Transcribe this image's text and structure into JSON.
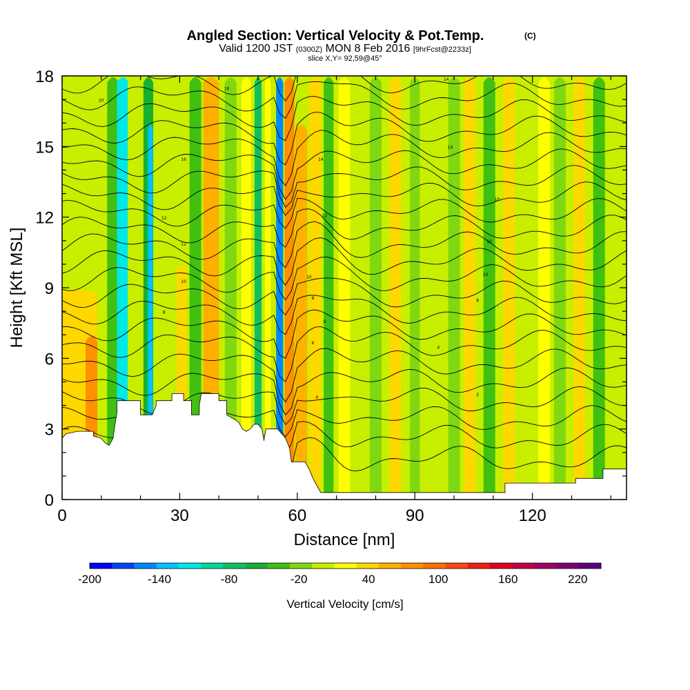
{
  "chart_data": {
    "type": "heatmap",
    "title": "Angled Section: Vertical Velocity & Pot.Temp.",
    "title_unit": "(C)",
    "subtitle_parts": {
      "valid": "Valid 1200 JST",
      "utc": "(0300Z)",
      "date": "MON 8 Feb 2016",
      "forecast": "[9hrFcst@2233z]"
    },
    "slice_text": "slice X,Y= 92,59@45°",
    "xlabel": "Distance [nm]",
    "ylabel": "Height [Kft MSL]",
    "xlim": [
      0,
      144
    ],
    "ylim": [
      0,
      18
    ],
    "x_ticks": [
      0,
      30,
      60,
      90,
      120
    ],
    "y_ticks": [
      0,
      3,
      6,
      9,
      12,
      15,
      18
    ],
    "colorbar": {
      "label": "Vertical Velocity [cm/s]",
      "range": [
        -200,
        240
      ],
      "tick_values": [
        -200,
        -140,
        -80,
        -20,
        40,
        100,
        160,
        220
      ],
      "colors": [
        "#0000ff",
        "#0044ff",
        "#0088ff",
        "#00c4ff",
        "#00e8e8",
        "#00d8a0",
        "#10c060",
        "#18b030",
        "#40c010",
        "#80d810",
        "#c8ee00",
        "#ffff00",
        "#ffd800",
        "#ffb000",
        "#ff9000",
        "#ff7000",
        "#ff4810",
        "#f02010",
        "#e00020",
        "#c00040",
        "#a00060",
        "#800070",
        "#5a0080"
      ]
    },
    "contour_labels": [
      "20",
      "16",
      "14",
      "16",
      "14",
      "14",
      "12",
      "12",
      "10",
      "12",
      "10",
      "10",
      "10",
      "10",
      "8",
      "8",
      "8",
      "6",
      "6",
      "4",
      "4",
      "2"
    ],
    "terrain_heights_kft": [
      [
        0,
        2.6
      ],
      [
        1,
        2.8
      ],
      [
        4,
        2.9
      ],
      [
        8,
        2.9
      ],
      [
        8,
        2.7
      ],
      [
        10,
        2.6
      ],
      [
        11,
        2.4
      ],
      [
        12,
        2.3
      ],
      [
        13,
        2.6
      ],
      [
        13.5,
        3.2
      ],
      [
        14,
        3.7
      ],
      [
        14,
        4.2
      ],
      [
        20,
        4.2
      ],
      [
        20,
        3.6
      ],
      [
        21,
        3.6
      ],
      [
        23,
        3.6
      ],
      [
        24,
        4.0
      ],
      [
        24,
        4.2
      ],
      [
        28,
        4.2
      ],
      [
        28,
        4.5
      ],
      [
        31,
        4.5
      ],
      [
        31,
        4.2
      ],
      [
        33,
        4.2
      ],
      [
        33,
        3.6
      ],
      [
        35,
        3.6
      ],
      [
        35,
        4.0
      ],
      [
        35.5,
        4.5
      ],
      [
        40,
        4.5
      ],
      [
        40,
        4.2
      ],
      [
        42,
        4.2
      ],
      [
        42,
        3.6
      ],
      [
        45,
        3.3
      ],
      [
        46,
        3.0
      ],
      [
        47,
        2.9
      ],
      [
        48,
        3.0
      ],
      [
        49,
        3.2
      ],
      [
        50,
        3.2
      ],
      [
        51,
        3.0
      ],
      [
        51.5,
        2.5
      ],
      [
        52,
        3.0
      ],
      [
        55,
        3.0
      ],
      [
        57,
        2.6
      ],
      [
        58,
        2.2
      ],
      [
        58.5,
        1.6
      ],
      [
        62,
        1.6
      ],
      [
        63,
        1.3
      ],
      [
        64,
        0.9
      ],
      [
        65,
        0.6
      ],
      [
        66,
        0.3
      ],
      [
        71,
        0.3
      ],
      [
        80,
        0.3
      ],
      [
        90,
        0.3
      ],
      [
        99,
        0.3
      ],
      [
        110,
        0.3
      ],
      [
        113,
        0.3
      ],
      [
        113,
        0.7
      ],
      [
        120,
        0.7
      ],
      [
        131,
        0.7
      ],
      [
        131,
        0.9
      ],
      [
        138,
        0.9
      ],
      [
        138,
        1.3
      ],
      [
        144,
        1.3
      ]
    ],
    "velocity_bands": [
      {
        "x": 1.5,
        "w": 3,
        "v": 20,
        "top": 5.5
      },
      {
        "x": 4,
        "w": 10,
        "v": 40,
        "top": 9.0
      },
      {
        "x": 7.5,
        "w": 3,
        "v": 70,
        "top": 7.0
      },
      {
        "x": 13,
        "w": 3,
        "v": -40,
        "top": 18
      },
      {
        "x": 15.5,
        "w": 3,
        "v": -110,
        "top": 18
      },
      {
        "x": 18,
        "w": 2.5,
        "v": 0,
        "top": 18
      },
      {
        "x": 22,
        "w": 2.5,
        "v": -60,
        "top": 18
      },
      {
        "x": 22.5,
        "w": 1.3,
        "v": -130,
        "top": 16
      },
      {
        "x": 26,
        "w": 3,
        "v": 10,
        "top": 18
      },
      {
        "x": 30.5,
        "w": 2.5,
        "v": 40,
        "top": 10
      },
      {
        "x": 34,
        "w": 3,
        "v": -30,
        "top": 18
      },
      {
        "x": 38,
        "w": 4,
        "v": 55,
        "top": 18
      },
      {
        "x": 43,
        "w": 3,
        "v": -25,
        "top": 18
      },
      {
        "x": 47,
        "w": 2.5,
        "v": 20,
        "top": 18
      },
      {
        "x": 50,
        "w": 1.8,
        "v": -70,
        "top": 18
      },
      {
        "x": 52.5,
        "w": 1.5,
        "v": 20,
        "top": 18
      },
      {
        "x": 55.5,
        "w": 1.8,
        "v": -150,
        "top": 18
      },
      {
        "x": 58,
        "w": 2.5,
        "v": 75,
        "top": 18
      },
      {
        "x": 61,
        "w": 3,
        "v": 65,
        "top": 16
      },
      {
        "x": 64.5,
        "w": 3,
        "v": 35,
        "top": 18
      },
      {
        "x": 68,
        "w": 2.5,
        "v": -35,
        "top": 18
      },
      {
        "x": 72,
        "w": 3,
        "v": 15,
        "top": 18
      },
      {
        "x": 76,
        "w": 3,
        "v": 5,
        "top": 18
      },
      {
        "x": 80,
        "w": 3,
        "v": -20,
        "top": 18
      },
      {
        "x": 85,
        "w": 3,
        "v": 30,
        "top": 18
      },
      {
        "x": 90,
        "w": 2.5,
        "v": -10,
        "top": 18
      },
      {
        "x": 95,
        "w": 3,
        "v": 10,
        "top": 18
      },
      {
        "x": 100,
        "w": 3,
        "v": -15,
        "top": 18
      },
      {
        "x": 104,
        "w": 3,
        "v": 40,
        "top": 18
      },
      {
        "x": 109,
        "w": 3,
        "v": -30,
        "top": 18
      },
      {
        "x": 114,
        "w": 3,
        "v": 35,
        "top": 18
      },
      {
        "x": 118,
        "w": 3,
        "v": 5,
        "top": 18
      },
      {
        "x": 123,
        "w": 3,
        "v": 25,
        "top": 18
      },
      {
        "x": 127,
        "w": 3,
        "v": -20,
        "top": 18
      },
      {
        "x": 132,
        "w": 3,
        "v": 35,
        "top": 18
      },
      {
        "x": 137,
        "w": 3,
        "v": -30,
        "top": 18
      },
      {
        "x": 141,
        "w": 3,
        "v": 10,
        "top": 18
      }
    ],
    "isentropes_base_kft": [
      1.7,
      2.6,
      3.4,
      4.2,
      5.0,
      5.8,
      6.6,
      7.3,
      8.0,
      8.7,
      9.4,
      10.1,
      10.8,
      11.5,
      12.2,
      12.9,
      13.6,
      14.3,
      15.0,
      15.7,
      16.4,
      17.1,
      17.8
    ]
  }
}
